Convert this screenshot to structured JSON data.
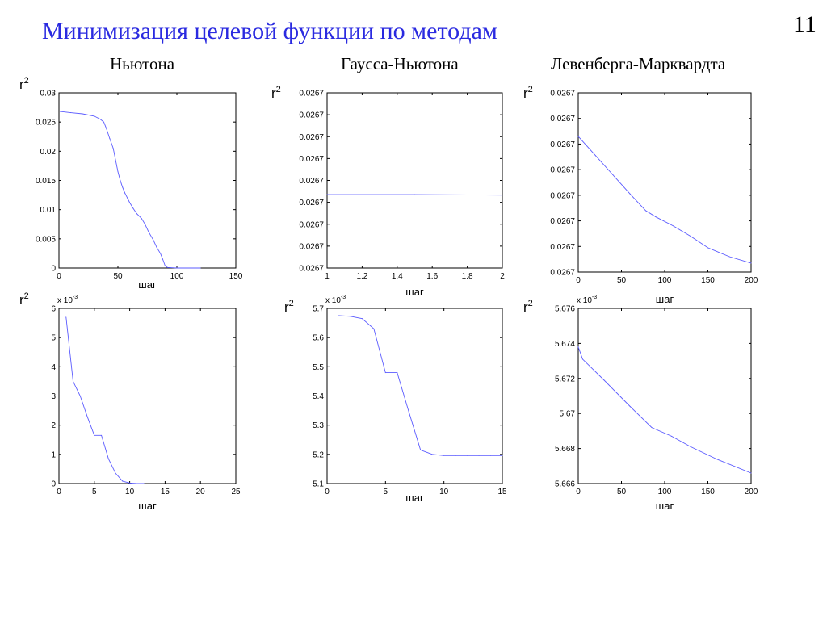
{
  "slide": {
    "title": "Минимизация целевой функции по методам",
    "page_number": "11",
    "columns": [
      "Ньютона",
      "Гаусса-Ньютона",
      "Левенберга-Марквардта"
    ]
  },
  "colors": {
    "title": "#2a2ae0",
    "line": "#5b5bff",
    "axis": "#000000"
  },
  "chart_data": [
    {
      "type": "line",
      "method": "Ньютона",
      "row": 1,
      "ylabel_base": "r",
      "ylabel_exp": "2",
      "xlabel": "шаг",
      "xlim": [
        0,
        150
      ],
      "ylim": [
        0,
        0.03
      ],
      "xticks": [
        0,
        50,
        100,
        150
      ],
      "yticks": [
        0,
        0.005,
        0.01,
        0.015,
        0.02,
        0.025,
        0.03
      ],
      "yticklabels": [
        "0",
        "0.005",
        "0.01",
        "0.015",
        "0.02",
        "0.025",
        "0.03"
      ],
      "exponent": "",
      "x": [
        1,
        10,
        20,
        30,
        35,
        38,
        40,
        43,
        46,
        48,
        50,
        52,
        54,
        56,
        58,
        60,
        63,
        66,
        70,
        73,
        76,
        80,
        83,
        86,
        88,
        90,
        92,
        95,
        100,
        120
      ],
      "y": [
        0.0268,
        0.0266,
        0.0264,
        0.026,
        0.0255,
        0.025,
        0.024,
        0.0222,
        0.0205,
        0.0185,
        0.0165,
        0.015,
        0.0138,
        0.0128,
        0.012,
        0.0112,
        0.0102,
        0.0093,
        0.0085,
        0.0075,
        0.0062,
        0.0048,
        0.0035,
        0.0025,
        0.0015,
        0.0004,
        0.0001,
        5e-05,
        0.0,
        0.0
      ]
    },
    {
      "type": "line",
      "method": "Гаусса-Ньютона",
      "row": 1,
      "ylabel_base": "r",
      "ylabel_exp": "2",
      "xlabel": "шаг",
      "xlim": [
        1,
        2
      ],
      "ylim": [
        0,
        8
      ],
      "xticks": [
        1,
        1.2,
        1.4,
        1.6,
        1.8,
        2
      ],
      "xticklabels": [
        "1",
        "1.2",
        "1.4",
        "1.6",
        "1.8",
        "2"
      ],
      "yticks": [
        0,
        1,
        2,
        3,
        4,
        5,
        6,
        7,
        8
      ],
      "yticklabels": [
        "0.0267",
        "0.0267",
        "0.0267",
        "0.0267",
        "0.0267",
        "0.0267",
        "0.0267",
        "0.0267",
        "0.0267"
      ],
      "exponent": "",
      "x": [
        1,
        1.5,
        2
      ],
      "y": [
        3.35,
        3.35,
        3.33
      ]
    },
    {
      "type": "line",
      "method": "Левенберга-Марквардта",
      "row": 1,
      "ylabel_base": "r",
      "ylabel_exp": "2",
      "xlabel": "шаг",
      "xlim": [
        0,
        200
      ],
      "ylim": [
        0,
        7
      ],
      "xticks": [
        0,
        50,
        100,
        150,
        200
      ],
      "yticks": [
        0,
        1,
        2,
        3,
        4,
        5,
        6,
        7
      ],
      "yticklabels": [
        "0.0267",
        "0.0267",
        "0.0267",
        "0.0267",
        "0.0267",
        "0.0267",
        "0.0267",
        "0.0267"
      ],
      "exponent": "",
      "x": [
        0,
        20,
        40,
        60,
        78,
        90,
        110,
        130,
        150,
        175,
        200
      ],
      "y": [
        5.3,
        4.55,
        3.8,
        3.05,
        2.4,
        2.15,
        1.8,
        1.4,
        0.95,
        0.6,
        0.35
      ]
    },
    {
      "type": "line",
      "method": "Ньютона",
      "row": 2,
      "ylabel_base": "r",
      "ylabel_exp": "2",
      "xlabel": "шаг",
      "xlim": [
        0,
        25
      ],
      "ylim": [
        0,
        6
      ],
      "xticks": [
        0,
        5,
        10,
        15,
        20,
        25
      ],
      "yticks": [
        0,
        1,
        2,
        3,
        4,
        5,
        6
      ],
      "yticklabels": [
        "0",
        "1",
        "2",
        "3",
        "4",
        "5",
        "6"
      ],
      "exponent": "x 10",
      "exponent_power": "-3",
      "x": [
        1,
        2,
        3,
        4,
        5,
        6,
        7,
        8,
        9,
        10,
        11,
        12
      ],
      "y": [
        5.7,
        3.5,
        3.0,
        2.3,
        1.65,
        1.65,
        0.85,
        0.35,
        0.08,
        0.02,
        0.0,
        0.0
      ]
    },
    {
      "type": "line",
      "method": "Гаусса-Ньютона",
      "row": 2,
      "ylabel_base": "r",
      "ylabel_exp": "2",
      "xlabel": "шаг",
      "xlim": [
        0,
        15
      ],
      "ylim": [
        5.1,
        5.7
      ],
      "xticks": [
        0,
        5,
        10,
        15
      ],
      "yticks": [
        5.1,
        5.2,
        5.3,
        5.4,
        5.5,
        5.6,
        5.7
      ],
      "yticklabels": [
        "5.1",
        "5.2",
        "5.3",
        "5.4",
        "5.5",
        "5.6",
        "5.7"
      ],
      "exponent": "x 10",
      "exponent_power": "-3",
      "x": [
        1,
        2,
        3,
        4,
        5,
        6,
        7,
        8,
        9,
        10,
        11,
        12,
        13,
        14,
        15
      ],
      "y": [
        5.675,
        5.673,
        5.665,
        5.63,
        5.48,
        5.48,
        5.345,
        5.215,
        5.2,
        5.196,
        5.196,
        5.196,
        5.196,
        5.196,
        5.196
      ]
    },
    {
      "type": "line",
      "method": "Левенберга-Марквардта",
      "row": 2,
      "ylabel_base": "r",
      "ylabel_exp": "2",
      "xlabel": "шаг",
      "xlim": [
        0,
        200
      ],
      "ylim": [
        5.666,
        5.676
      ],
      "xticks": [
        0,
        50,
        100,
        150,
        200
      ],
      "yticks": [
        5.666,
        5.668,
        5.67,
        5.672,
        5.674,
        5.676
      ],
      "yticklabels": [
        "5.666",
        "5.668",
        "5.67",
        "5.672",
        "5.674",
        "5.676"
      ],
      "exponent": "x 10",
      "exponent_power": "-3",
      "x": [
        0,
        5,
        30,
        60,
        85,
        108,
        130,
        160,
        200
      ],
      "y": [
        5.6738,
        5.6731,
        5.6719,
        5.6704,
        5.6692,
        5.6687,
        5.6681,
        5.6674,
        5.6666
      ]
    }
  ]
}
